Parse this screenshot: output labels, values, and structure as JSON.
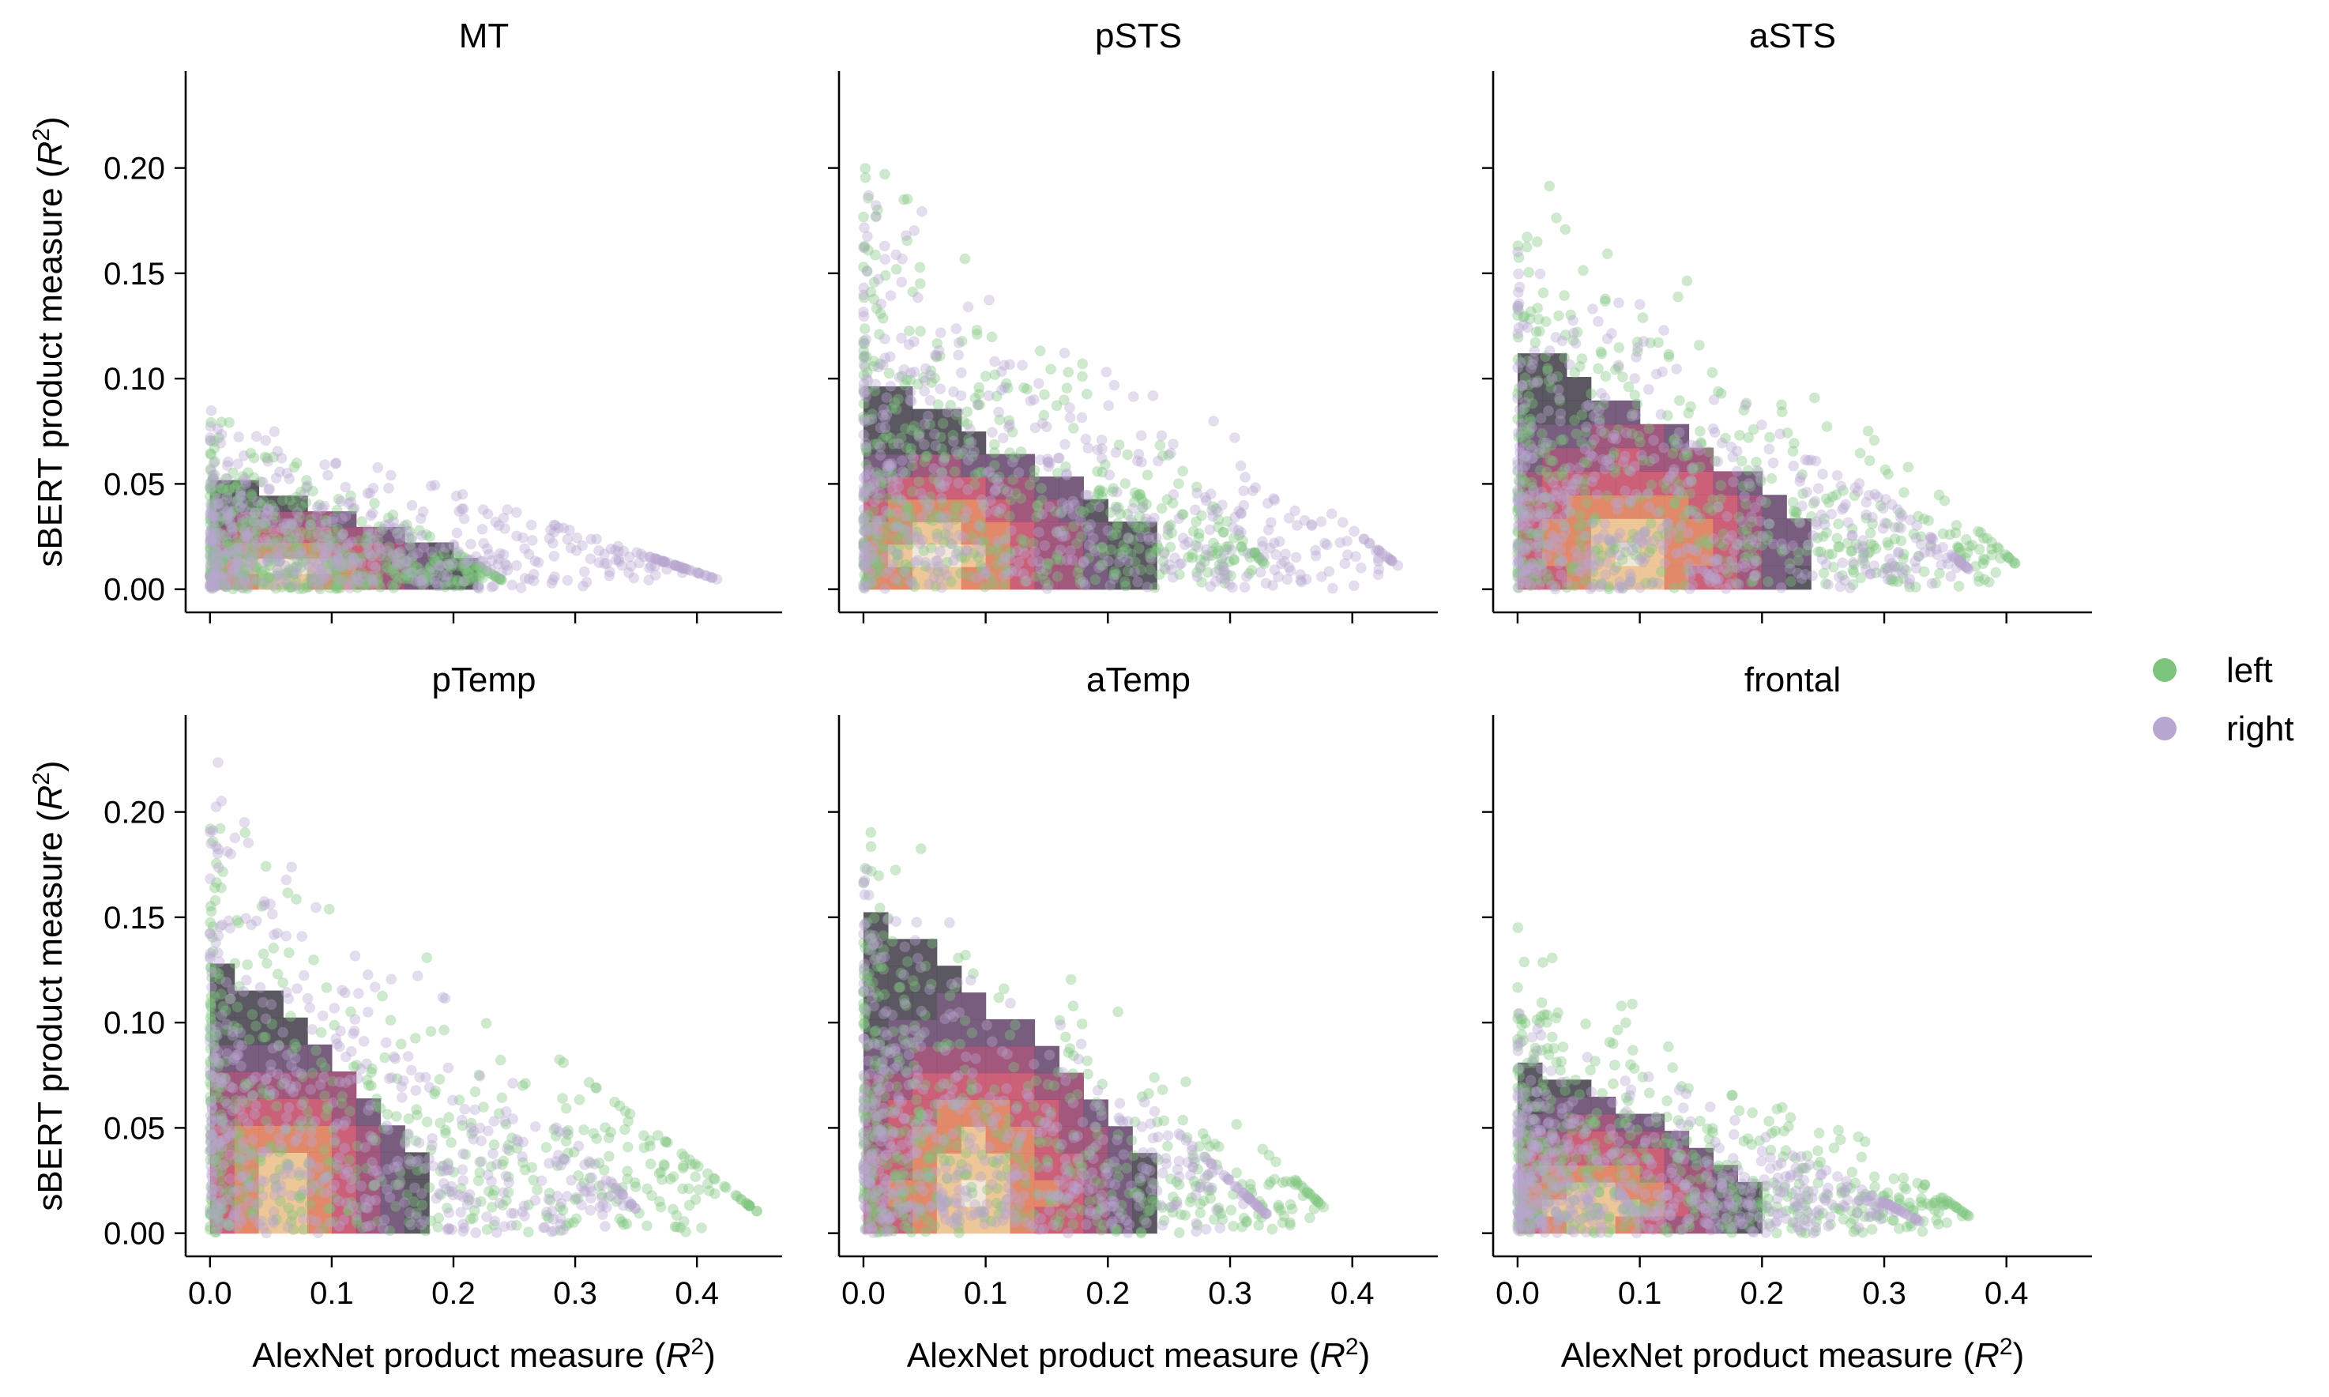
{
  "figure": {
    "xlabel": "AlexNet product measure",
    "ylabel": "sBERT product measure",
    "label_symbol": "R",
    "label_superscript": "2"
  },
  "legend": {
    "placement": "right",
    "entries": [
      {
        "label": "left",
        "color": "#7dc47d"
      },
      {
        "label": "right",
        "color": "#b7a6cf"
      }
    ]
  },
  "colors": {
    "left": "#7dc47d",
    "right": "#b7a6cf",
    "heat_low": "#4e4a55",
    "heat_mid1": "#6e4f74",
    "heat_mid2": "#9a4a72",
    "heat_mid3": "#c8536e",
    "heat_high1": "#e07f5c",
    "heat_high2": "#ecc28e",
    "heat_top": "#f1e6d6"
  },
  "chart_data": [
    {
      "type": "scatter",
      "title": "MT",
      "xlim": [
        -0.02,
        0.47
      ],
      "ylim": [
        -0.011,
        0.246
      ],
      "xticks": [
        "0.0",
        "0.1",
        "0.2",
        "0.3",
        "0.4"
      ],
      "yticks": [
        "0.00",
        "0.05",
        "0.10",
        "0.15",
        "0.20"
      ],
      "show_x_ticklabels": false,
      "show_y_ticklabels": true,
      "heat_bins": {
        "dx": 0.02,
        "dy": 0.0074,
        "origin": [
          0.0,
          0.0
        ]
      },
      "series": [
        {
          "name": "left",
          "x_range": [
            0.0,
            0.24
          ],
          "y_peak": 0.01,
          "y_max": 0.088
        },
        {
          "name": "right",
          "x_range": [
            0.0,
            0.42
          ],
          "y_peak": 0.015,
          "y_max": 0.085
        }
      ],
      "heatmap_region": {
        "x_max": 0.22,
        "y_max": 0.052,
        "hot_spot": [
          0.06,
          0.01
        ]
      }
    },
    {
      "type": "scatter",
      "title": "pSTS",
      "xlim": [
        -0.02,
        0.47
      ],
      "ylim": [
        -0.011,
        0.246
      ],
      "xticks": [
        "0.0",
        "0.1",
        "0.2",
        "0.3",
        "0.4"
      ],
      "yticks": [
        "0.00",
        "0.05",
        "0.10",
        "0.15",
        "0.20"
      ],
      "show_x_ticklabels": false,
      "show_y_ticklabels": false,
      "heat_bins": {
        "dx": 0.02,
        "dy": 0.0107,
        "origin": [
          0.0,
          0.0
        ]
      },
      "series": [
        {
          "name": "left",
          "x_range": [
            0.0,
            0.33
          ],
          "y_peak": 0.02,
          "y_max": 0.228
        },
        {
          "name": "right",
          "x_range": [
            0.0,
            0.44
          ],
          "y_peak": 0.02,
          "y_max": 0.21
        }
      ],
      "heatmap_region": {
        "x_max": 0.24,
        "y_max": 0.091,
        "hot_spot": [
          0.06,
          0.016
        ]
      }
    },
    {
      "type": "scatter",
      "title": "aSTS",
      "xlim": [
        -0.02,
        0.47
      ],
      "ylim": [
        -0.011,
        0.246
      ],
      "xticks": [
        "0.0",
        "0.1",
        "0.2",
        "0.3",
        "0.4"
      ],
      "yticks": [
        "0.00",
        "0.05",
        "0.10",
        "0.15",
        "0.20"
      ],
      "show_x_ticklabels": false,
      "show_y_ticklabels": false,
      "heat_bins": {
        "dx": 0.02,
        "dy": 0.0112,
        "origin": [
          0.0,
          0.0
        ]
      },
      "series": [
        {
          "name": "left",
          "x_range": [
            0.0,
            0.41
          ],
          "y_peak": 0.02,
          "y_max": 0.225
        },
        {
          "name": "right",
          "x_range": [
            0.0,
            0.37
          ],
          "y_peak": 0.02,
          "y_max": 0.19
        }
      ],
      "heatmap_region": {
        "x_max": 0.24,
        "y_max": 0.112,
        "hot_spot": [
          0.09,
          0.02
        ]
      }
    },
    {
      "type": "scatter",
      "title": "pTemp",
      "xlim": [
        -0.02,
        0.47
      ],
      "ylim": [
        -0.011,
        0.246
      ],
      "xticks": [
        "0.0",
        "0.1",
        "0.2",
        "0.3",
        "0.4"
      ],
      "yticks": [
        "0.00",
        "0.05",
        "0.10",
        "0.15",
        "0.20"
      ],
      "show_x_ticklabels": true,
      "show_y_ticklabels": true,
      "heat_bins": {
        "dx": 0.02,
        "dy": 0.0128,
        "origin": [
          0.0,
          0.0
        ]
      },
      "series": [
        {
          "name": "left",
          "x_range": [
            0.0,
            0.45
          ],
          "y_peak": 0.025,
          "y_max": 0.21
        },
        {
          "name": "right",
          "x_range": [
            0.0,
            0.35
          ],
          "y_peak": 0.025,
          "y_max": 0.235
        }
      ],
      "heatmap_region": {
        "x_max": 0.18,
        "y_max": 0.128,
        "hot_spot": [
          0.06,
          0.02
        ]
      }
    },
    {
      "type": "scatter",
      "title": "aTemp",
      "xlim": [
        -0.02,
        0.47
      ],
      "ylim": [
        -0.011,
        0.246
      ],
      "xticks": [
        "0.0",
        "0.1",
        "0.2",
        "0.3",
        "0.4"
      ],
      "yticks": [
        "0.00",
        "0.05",
        "0.10",
        "0.15",
        "0.20"
      ],
      "show_x_ticklabels": true,
      "show_y_ticklabels": false,
      "heat_bins": {
        "dx": 0.02,
        "dy": 0.0127,
        "origin": [
          0.0,
          0.0
        ]
      },
      "series": [
        {
          "name": "left",
          "x_range": [
            0.0,
            0.38
          ],
          "y_peak": 0.02,
          "y_max": 0.22
        },
        {
          "name": "right",
          "x_range": [
            0.0,
            0.33
          ],
          "y_peak": 0.025,
          "y_max": 0.185
        }
      ],
      "heatmap_region": {
        "x_max": 0.23,
        "y_max": 0.153,
        "hot_spot": [
          0.09,
          0.02
        ]
      }
    },
    {
      "type": "scatter",
      "title": "frontal",
      "xlim": [
        -0.02,
        0.47
      ],
      "ylim": [
        -0.011,
        0.246
      ],
      "xticks": [
        "0.0",
        "0.1",
        "0.2",
        "0.3",
        "0.4"
      ],
      "yticks": [
        "0.00",
        "0.05",
        "0.10",
        "0.15",
        "0.20"
      ],
      "show_x_ticklabels": true,
      "show_y_ticklabels": false,
      "heat_bins": {
        "dx": 0.02,
        "dy": 0.0081,
        "origin": [
          0.0,
          0.0
        ]
      },
      "series": [
        {
          "name": "left",
          "x_range": [
            0.0,
            0.37
          ],
          "y_peak": 0.015,
          "y_max": 0.162
        },
        {
          "name": "right",
          "x_range": [
            0.0,
            0.33
          ],
          "y_peak": 0.015,
          "y_max": 0.11
        }
      ],
      "heatmap_region": {
        "x_max": 0.2,
        "y_max": 0.081,
        "hot_spot": [
          0.06,
          0.015
        ]
      }
    }
  ]
}
